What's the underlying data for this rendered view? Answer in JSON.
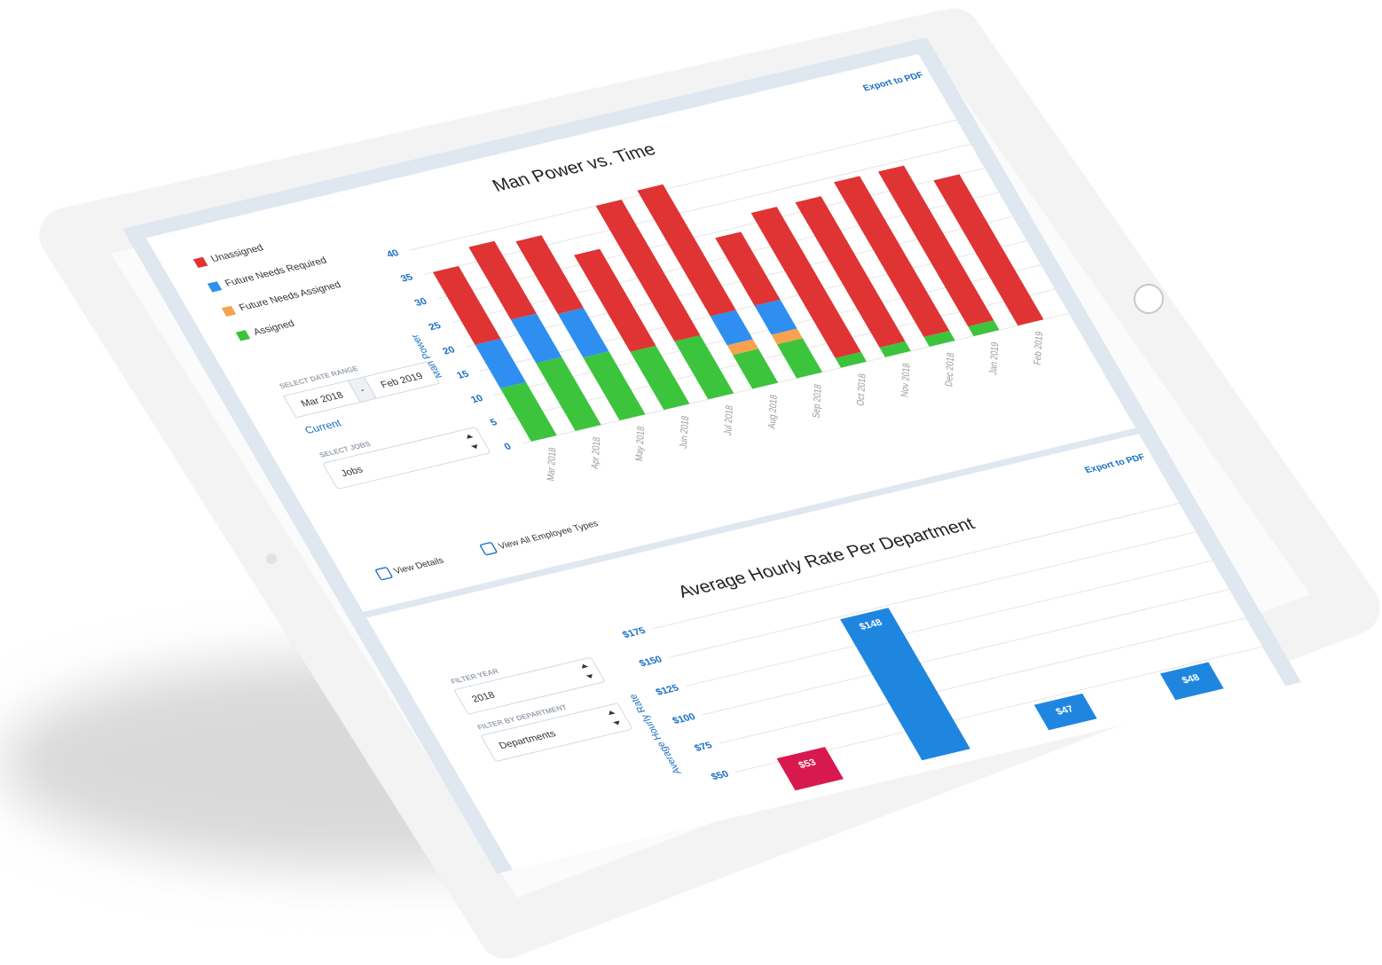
{
  "chart_data": [
    {
      "type": "stacked_bar",
      "title": "Man Power vs. Time",
      "y_label": "Man Power",
      "categories": [
        "Mar 2018",
        "Apr 2018",
        "May 2018",
        "Jun 2018",
        "Jul 2018",
        "Aug 2018",
        "Sep 2018",
        "Oct 2018",
        "Nov 2018",
        "Dec 2018",
        "Jan 2019",
        "Feb 2019"
      ],
      "series": [
        {
          "name": "Unassigned",
          "color": "#e03333",
          "values": [
            15,
            15,
            15,
            20,
            28,
            26,
            14,
            30,
            30,
            32,
            32,
            30
          ]
        },
        {
          "name": "Future Needs Required",
          "color": "#2f8ff0",
          "values": [
            9,
            9,
            9,
            0,
            0,
            6,
            6,
            0,
            0,
            0,
            0,
            0
          ]
        },
        {
          "name": "Future Needs Assigned",
          "color": "#f7a24f",
          "values": [
            0,
            0,
            0,
            0,
            0,
            2,
            2,
            0,
            0,
            0,
            0,
            0
          ]
        },
        {
          "name": "Assigned",
          "color": "#3cc43c",
          "values": [
            11,
            14,
            13,
            12,
            12,
            7,
            7,
            2,
            2,
            2,
            2,
            0
          ]
        }
      ],
      "stack_order": [
        3,
        2,
        1,
        0
      ],
      "ylim": [
        0,
        50
      ],
      "yticks": [
        0,
        5,
        10,
        15,
        20,
        25,
        30,
        35,
        40
      ],
      "grid": true,
      "legend": "left"
    },
    {
      "type": "bar",
      "title": "Average Hourly Rate Per Department",
      "y_label": "Average Hourly Rate",
      "categories": [
        null,
        null,
        null,
        null
      ],
      "values": [
        53,
        148,
        47,
        48
      ],
      "value_labels": [
        "$53",
        "$148",
        "$47",
        "$48"
      ],
      "colors": [
        "#d8194f",
        "#1f86e0",
        "#1f86e0",
        "#1f86e0"
      ],
      "ylim": [
        25,
        175
      ],
      "yticks": [
        {
          "value": 50,
          "label": "$50"
        },
        {
          "value": 75,
          "label": "$75"
        },
        {
          "value": 100,
          "label": "$100"
        },
        {
          "value": 125,
          "label": "$125"
        },
        {
          "value": 150,
          "label": "$150"
        },
        {
          "value": 175,
          "label": "$175"
        }
      ],
      "grid": true
    }
  ],
  "manpower_panel": {
    "export": "Export to PDF",
    "date_range": {
      "label": "SELECT DATE RANGE",
      "from": "Mar 2018",
      "separator": "-",
      "to": "Feb 2019",
      "link": "Current"
    },
    "jobs": {
      "label": "SELECT JOBS",
      "value": "Jobs"
    },
    "checkboxes": [
      "View Details",
      "View All Employee Types"
    ]
  },
  "rate_panel": {
    "export": "Export to PDF",
    "year": {
      "label": "FILTER YEAR",
      "value": "2018"
    },
    "department": {
      "label": "FILTER BY DEPARTMENT",
      "value": "Departments"
    }
  }
}
